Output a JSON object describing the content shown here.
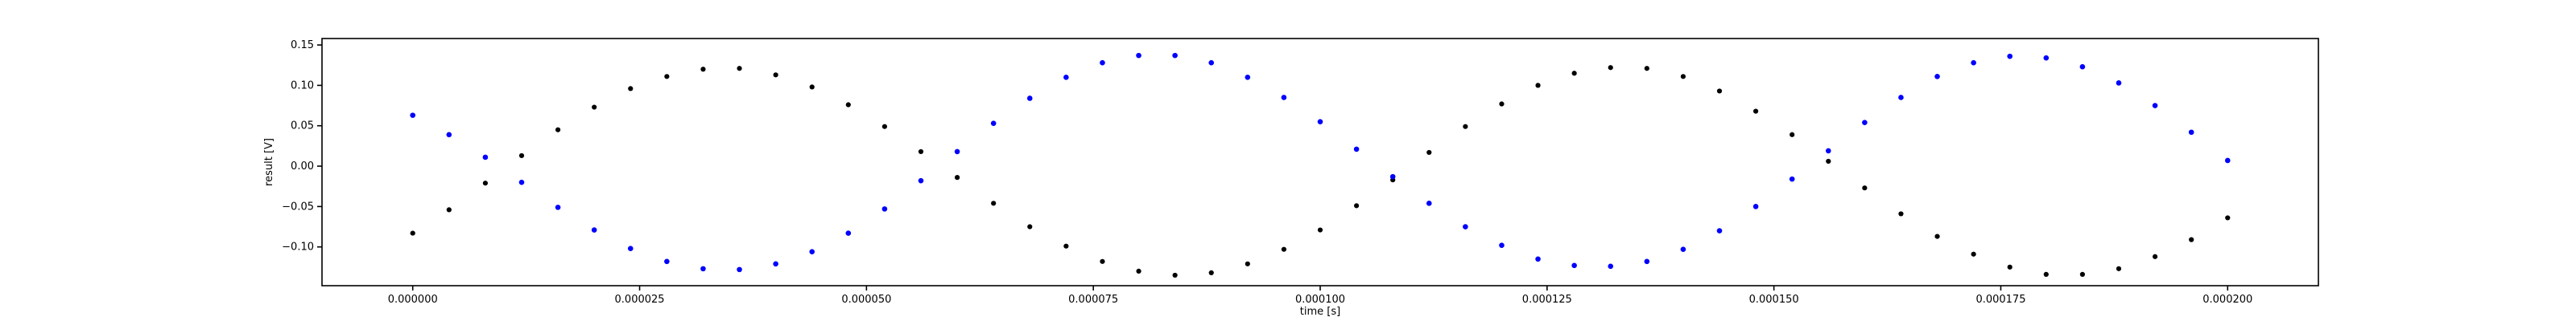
{
  "chart_data": {
    "type": "scatter",
    "title": "",
    "xlabel": "time [s]",
    "ylabel": "result [V]",
    "xlim": [
      -1e-05,
      0.00021
    ],
    "ylim": [
      -0.148,
      0.158
    ],
    "grid": false,
    "legend": "none",
    "x_ticks": [
      {
        "value": 0.0,
        "label": "0.000000"
      },
      {
        "value": 2.5e-05,
        "label": "0.000025"
      },
      {
        "value": 5e-05,
        "label": "0.000050"
      },
      {
        "value": 7.5e-05,
        "label": "0.000075"
      },
      {
        "value": 0.0001,
        "label": "0.000100"
      },
      {
        "value": 0.000125,
        "label": "0.000125"
      },
      {
        "value": 0.00015,
        "label": "0.000150"
      },
      {
        "value": 0.000175,
        "label": "0.000175"
      },
      {
        "value": 0.0002,
        "label": "0.000200"
      }
    ],
    "y_ticks": [
      {
        "value": -0.1,
        "label": "−0.10"
      },
      {
        "value": -0.05,
        "label": "−0.05"
      },
      {
        "value": 0.0,
        "label": "0.00"
      },
      {
        "value": 0.05,
        "label": "0.05"
      },
      {
        "value": 0.1,
        "label": "0.10"
      },
      {
        "value": 0.15,
        "label": "0.15"
      }
    ],
    "series": [
      {
        "color": "#000000",
        "x": [
          0.0,
          4e-06,
          8e-06,
          1.2e-05,
          1.6e-05,
          2e-05,
          2.4e-05,
          2.8e-05,
          3.2e-05,
          3.6e-05,
          4e-05,
          4.4e-05,
          4.8e-05,
          5.2e-05,
          5.6e-05,
          6e-05,
          6.4e-05,
          6.8e-05,
          7.2e-05,
          7.6e-05,
          8e-05,
          8.4e-05,
          8.8e-05,
          9.2e-05,
          9.6e-05,
          0.0001,
          0.000104,
          0.000108,
          0.000112,
          0.000116,
          0.00012,
          0.000124,
          0.000128,
          0.000132,
          0.000136,
          0.00014,
          0.000144,
          0.000148,
          0.000152,
          0.000156,
          0.00016,
          0.000164,
          0.000168,
          0.000172,
          0.000176,
          0.00018,
          0.000184,
          0.000188,
          0.000192,
          0.000196,
          0.0002
        ],
        "y": [
          -0.083,
          -0.054,
          -0.021,
          0.013,
          0.045,
          0.073,
          0.096,
          0.111,
          0.12,
          0.121,
          0.113,
          0.098,
          0.076,
          0.049,
          0.018,
          -0.014,
          -0.046,
          -0.075,
          -0.099,
          -0.118,
          -0.13,
          -0.135,
          -0.132,
          -0.121,
          -0.103,
          -0.079,
          -0.049,
          -0.017,
          0.017,
          0.049,
          0.077,
          0.1,
          0.115,
          0.122,
          0.121,
          0.111,
          0.093,
          0.068,
          0.039,
          0.006,
          -0.027,
          -0.059,
          -0.087,
          -0.109,
          -0.125,
          -0.134,
          -0.134,
          -0.127,
          -0.112,
          -0.091,
          -0.064
        ]
      },
      {
        "color": "#0000ff",
        "x": [
          0.0,
          4e-06,
          8e-06,
          1.2e-05,
          1.6e-05,
          2e-05,
          2.4e-05,
          2.8e-05,
          3.2e-05,
          3.6e-05,
          4e-05,
          4.4e-05,
          4.8e-05,
          5.2e-05,
          5.6e-05,
          6e-05,
          6.4e-05,
          6.8e-05,
          7.2e-05,
          7.6e-05,
          8e-05,
          8.4e-05,
          8.8e-05,
          9.2e-05,
          9.6e-05,
          0.0001,
          0.000104,
          0.000108,
          0.000112,
          0.000116,
          0.00012,
          0.000124,
          0.000128,
          0.000132,
          0.000136,
          0.00014,
          0.000144,
          0.000148,
          0.000152,
          0.000156,
          0.00016,
          0.000164,
          0.000168,
          0.000172,
          0.000176,
          0.00018,
          0.000184,
          0.000188,
          0.000192,
          0.000196,
          0.0002
        ],
        "y": [
          0.063,
          0.039,
          0.011,
          -0.02,
          -0.051,
          -0.079,
          -0.102,
          -0.118,
          -0.127,
          -0.128,
          -0.121,
          -0.106,
          -0.083,
          -0.053,
          -0.018,
          0.018,
          0.053,
          0.084,
          0.11,
          0.128,
          0.137,
          0.137,
          0.128,
          0.11,
          0.085,
          0.055,
          0.021,
          -0.013,
          -0.046,
          -0.075,
          -0.098,
          -0.115,
          -0.123,
          -0.124,
          -0.118,
          -0.103,
          -0.08,
          -0.05,
          -0.016,
          0.019,
          0.054,
          0.085,
          0.111,
          0.128,
          0.136,
          0.134,
          0.123,
          0.103,
          0.075,
          0.042,
          0.007
        ]
      }
    ]
  }
}
